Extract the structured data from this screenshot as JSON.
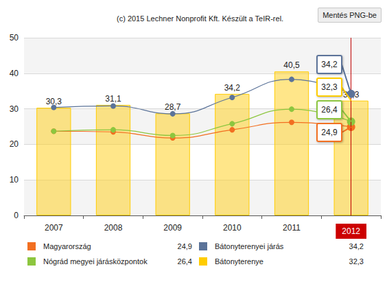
{
  "chart_data": {
    "type": "line",
    "title": "(c) 2015 Lechner Nonprofit Kft. Készült a TeIR-rel.",
    "annotations": [
      "Mentés PNG-be"
    ],
    "categories": [
      "2007",
      "2008",
      "2009",
      "2010",
      "2011",
      "2012"
    ],
    "ylim": [
      0,
      50
    ],
    "yticks": [
      0,
      10,
      20,
      30,
      40,
      50
    ],
    "grid": true,
    "legend": "bottom",
    "series": [
      {
        "name": "Magyarország",
        "type": "line",
        "color": "#f26f21",
        "values": [
          23.7,
          23.5,
          21.8,
          24.1,
          26.2,
          24.9
        ],
        "value_labels": [
          null,
          null,
          null,
          null,
          null,
          "24,9"
        ]
      },
      {
        "name": "Nógrád megyei járásközpontok",
        "type": "line",
        "color": "#8dc63f",
        "values": [
          23.7,
          24.1,
          22.5,
          25.8,
          29.9,
          26.4
        ],
        "value_labels": [
          null,
          null,
          null,
          null,
          null,
          "26,4"
        ]
      },
      {
        "name": "Bátonyterenyei járás",
        "type": "line",
        "color": "#5b7399",
        "values": [
          30.4,
          30.8,
          28.6,
          33.2,
          38.3,
          34.2
        ],
        "value_labels": [
          null,
          null,
          null,
          null,
          null,
          "34,2"
        ]
      },
      {
        "name": "Bátonyterenye",
        "type": "bar",
        "color": "#ffcc00",
        "data_labels": true,
        "values": [
          30.3,
          31.1,
          28.7,
          34.2,
          40.5,
          32.3
        ],
        "value_labels": [
          "30,3",
          "31,1",
          "28,7",
          "34,2",
          "40,5",
          "32,3"
        ]
      }
    ]
  }
}
